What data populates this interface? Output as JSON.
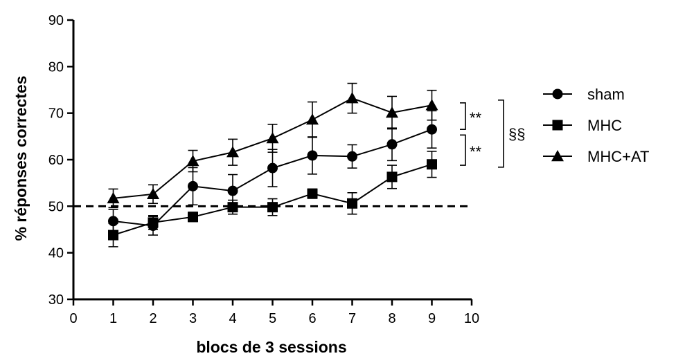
{
  "chart_data": {
    "type": "line",
    "title": "",
    "xlabel": "blocs de 3 sessions",
    "ylabel": "% réponses correctes",
    "xlim": [
      0,
      10
    ],
    "ylim": [
      30,
      90
    ],
    "xticks": [
      "0",
      "1",
      "2",
      "3",
      "4",
      "5",
      "6",
      "7",
      "8",
      "9",
      "10"
    ],
    "yticks": [
      "30",
      "40",
      "50",
      "60",
      "70",
      "80",
      "90"
    ],
    "x": [
      1,
      2,
      3,
      4,
      5,
      6,
      7,
      8,
      9
    ],
    "reference_line": {
      "y": 50,
      "style": "dashed"
    },
    "grid": false,
    "legend_position": "right",
    "series": [
      {
        "name": "sham",
        "marker": "circle",
        "values": [
          46.8,
          45.8,
          54.3,
          53.3,
          58.2,
          60.9,
          60.7,
          63.3,
          66.5
        ],
        "errors": [
          2.5,
          2.0,
          4.0,
          3.5,
          4.0,
          4.0,
          2.5,
          3.5,
          4.0
        ]
      },
      {
        "name": "MHC",
        "marker": "square",
        "values": [
          43.8,
          46.5,
          47.7,
          49.8,
          49.8,
          52.7,
          50.6,
          56.3,
          59.0
        ],
        "errors": [
          2.5,
          1.5,
          1.0,
          1.5,
          1.8,
          1.0,
          2.3,
          2.5,
          2.8
        ]
      },
      {
        "name": "MHC+AT",
        "marker": "triangle",
        "values": [
          51.7,
          52.6,
          59.7,
          61.6,
          64.6,
          68.6,
          73.2,
          70.1,
          71.7
        ],
        "errors": [
          2.0,
          2.0,
          2.3,
          2.8,
          3.0,
          3.8,
          3.2,
          3.5,
          3.2
        ]
      }
    ],
    "annotations": [
      {
        "text": "**",
        "between": [
          "MHC+AT",
          "sham"
        ]
      },
      {
        "text": "**",
        "between": [
          "sham",
          "MHC"
        ]
      },
      {
        "text": "§§",
        "between": [
          "MHC+AT",
          "MHC"
        ]
      }
    ]
  }
}
